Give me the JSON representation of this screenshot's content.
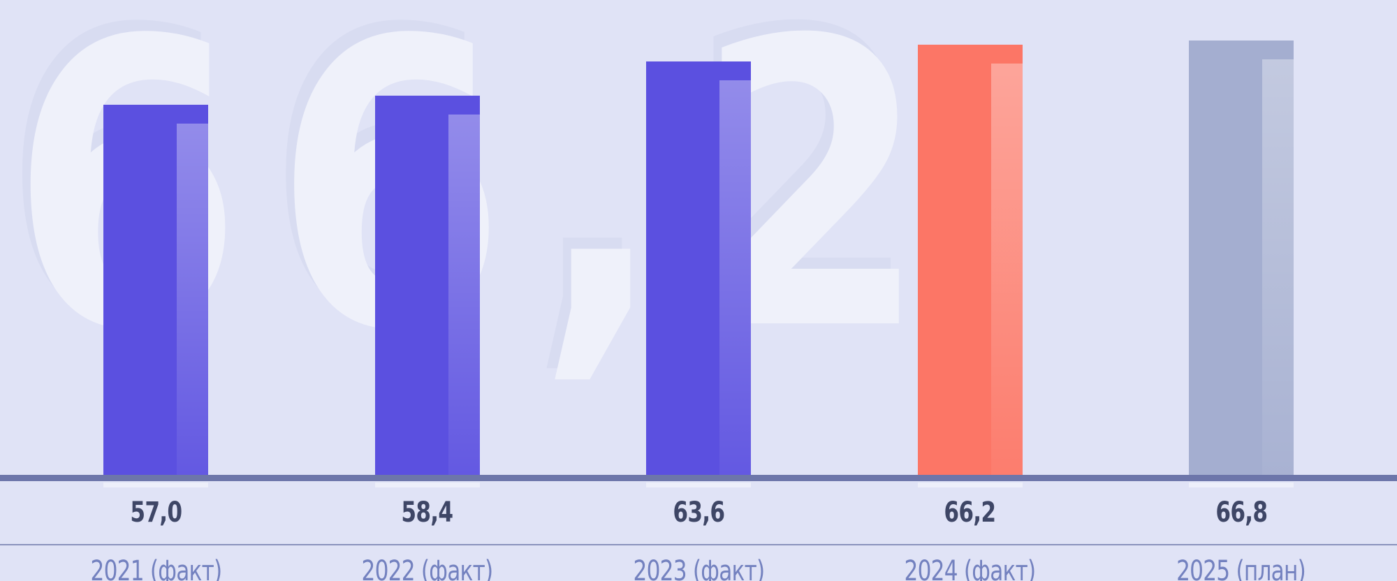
{
  "watermark": {
    "text": "66,2"
  },
  "colors": {
    "background": "#E0E3F6",
    "watermark": "#EFF1FA",
    "bar_purple": "#5B50E0",
    "bar_coral": "#FC7666",
    "bar_gray_blue": "#A4AED0",
    "baseline": "#6D76AA",
    "separator_line": "#8A92BC",
    "value_text": "#3E4666",
    "category_text": "#7381BF"
  },
  "chart_data": {
    "type": "bar",
    "title": "",
    "categories": [
      "2021 (факт)",
      "2022 (факт)",
      "2023 (факт)",
      "2024 (факт)",
      "2025 (план)"
    ],
    "values": [
      57.0,
      58.4,
      63.6,
      66.2,
      66.8
    ],
    "value_labels": [
      "57,0",
      "58,4",
      "63,6",
      "66,2",
      "66,8"
    ],
    "bar_colors": [
      "#5B50E0",
      "#5B50E0",
      "#5B50E0",
      "#FC7666",
      "#A4AED0"
    ],
    "highlighted_bar_index": 3,
    "watermark_value": "66,2",
    "xlabel": "",
    "ylabel": "",
    "ylim": [
      0,
      73
    ],
    "grid": false,
    "legend": false,
    "value_label_position": "below-axis",
    "decimal_separator": ","
  }
}
